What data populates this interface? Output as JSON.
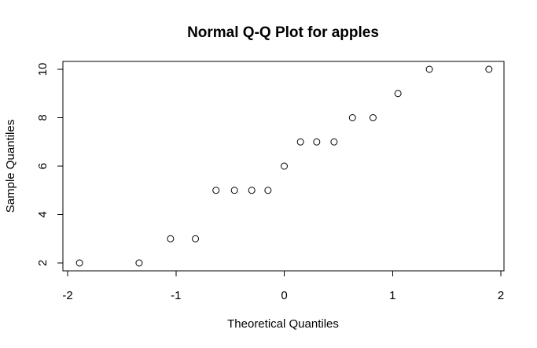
{
  "chart_data": {
    "type": "scatter",
    "title": "Normal Q-Q Plot for apples",
    "xlabel": "Theoretical Quantiles",
    "ylabel": "Sample Quantiles",
    "xlim": [
      -2,
      2
    ],
    "ylim": [
      2,
      10
    ],
    "x_ticks": [
      -2,
      -1,
      0,
      1,
      2
    ],
    "y_ticks": [
      2,
      4,
      6,
      8,
      10
    ],
    "grid": false,
    "legend": "none",
    "series": [
      {
        "points": [
          {
            "x": -1.89,
            "y": 2
          },
          {
            "x": -1.34,
            "y": 2
          },
          {
            "x": -1.05,
            "y": 3
          },
          {
            "x": -0.82,
            "y": 3
          },
          {
            "x": -0.63,
            "y": 5
          },
          {
            "x": -0.46,
            "y": 5
          },
          {
            "x": -0.3,
            "y": 5
          },
          {
            "x": -0.15,
            "y": 5
          },
          {
            "x": 0.0,
            "y": 6
          },
          {
            "x": 0.15,
            "y": 7
          },
          {
            "x": 0.3,
            "y": 7
          },
          {
            "x": 0.46,
            "y": 7
          },
          {
            "x": 0.63,
            "y": 8
          },
          {
            "x": 0.82,
            "y": 8
          },
          {
            "x": 1.05,
            "y": 9
          },
          {
            "x": 1.34,
            "y": 10
          },
          {
            "x": 1.89,
            "y": 10
          }
        ]
      }
    ],
    "colors": {
      "points": "#000000",
      "axes": "#000000",
      "background": "#ffffff"
    }
  }
}
